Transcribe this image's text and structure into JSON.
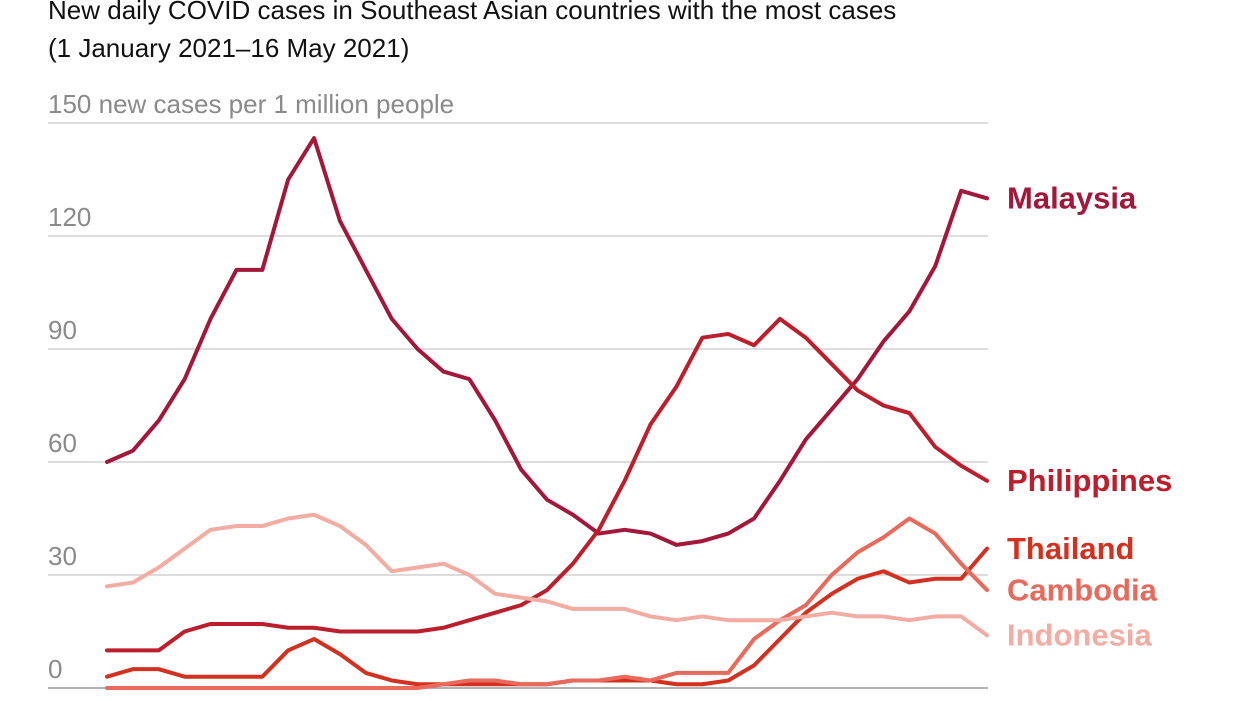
{
  "chart_data": {
    "type": "line",
    "title": "New daily COVID cases in Southeast Asian countries with the most cases",
    "subtitle": "(1 January 2021–16 May 2021)",
    "categories": [
      null,
      null,
      null,
      null,
      null,
      null,
      null,
      null,
      null,
      null,
      null,
      null,
      null,
      null,
      null,
      null,
      null,
      null,
      null,
      null,
      null,
      null,
      null,
      null,
      null,
      null,
      null,
      null,
      null,
      null,
      null,
      null,
      null,
      null,
      null
    ],
    "ylim": [
      0,
      150
    ],
    "yticks": [
      0,
      30,
      60,
      90,
      120,
      {
        "value": 150,
        "label": "150 new cases per 1 million people"
      }
    ],
    "grid": true,
    "series": [
      {
        "name": "Malaysia",
        "color": "#a3173a",
        "values": [
          60,
          63,
          71,
          82,
          98,
          111,
          111,
          135,
          146,
          124,
          111,
          98,
          90,
          84,
          82,
          71,
          58,
          50,
          46,
          41,
          42,
          41,
          38,
          39,
          41,
          45,
          55,
          66,
          74,
          82,
          92,
          100,
          112,
          132,
          130
        ]
      },
      {
        "name": "Philippines",
        "color": "#bd1e2c",
        "values": [
          10,
          10,
          10,
          15,
          17,
          17,
          17,
          16,
          16,
          15,
          15,
          15,
          15,
          16,
          18,
          20,
          22,
          26,
          33,
          42,
          55,
          70,
          80,
          93,
          94,
          91,
          98,
          93,
          86,
          79,
          75,
          73,
          64,
          59,
          55
        ]
      },
      {
        "name": "Thailand",
        "color": "#d3301f",
        "values": [
          3,
          5,
          5,
          3,
          3,
          3,
          3,
          10,
          13,
          9,
          4,
          2,
          1,
          1,
          1,
          1,
          1,
          1,
          2,
          2,
          2,
          2,
          1,
          1,
          2,
          6,
          13,
          20,
          25,
          29,
          31,
          28,
          29,
          29,
          37
        ]
      },
      {
        "name": "Cambodia",
        "color": "#e86a5c",
        "values": [
          0,
          0,
          0,
          0,
          0,
          0,
          0,
          0,
          0,
          0,
          0,
          0,
          0,
          1,
          2,
          2,
          1,
          1,
          2,
          2,
          3,
          2,
          4,
          4,
          4,
          13,
          18,
          22,
          30,
          36,
          40,
          45,
          41,
          33,
          26
        ]
      },
      {
        "name": "Indonesia",
        "color": "#f2aca2",
        "values": [
          27,
          28,
          32,
          37,
          42,
          43,
          43,
          45,
          46,
          43,
          38,
          31,
          32,
          33,
          30,
          25,
          24,
          23,
          21,
          21,
          21,
          19,
          18,
          19,
          18,
          18,
          18,
          19,
          20,
          19,
          19,
          18,
          19,
          19,
          14
        ]
      }
    ]
  }
}
